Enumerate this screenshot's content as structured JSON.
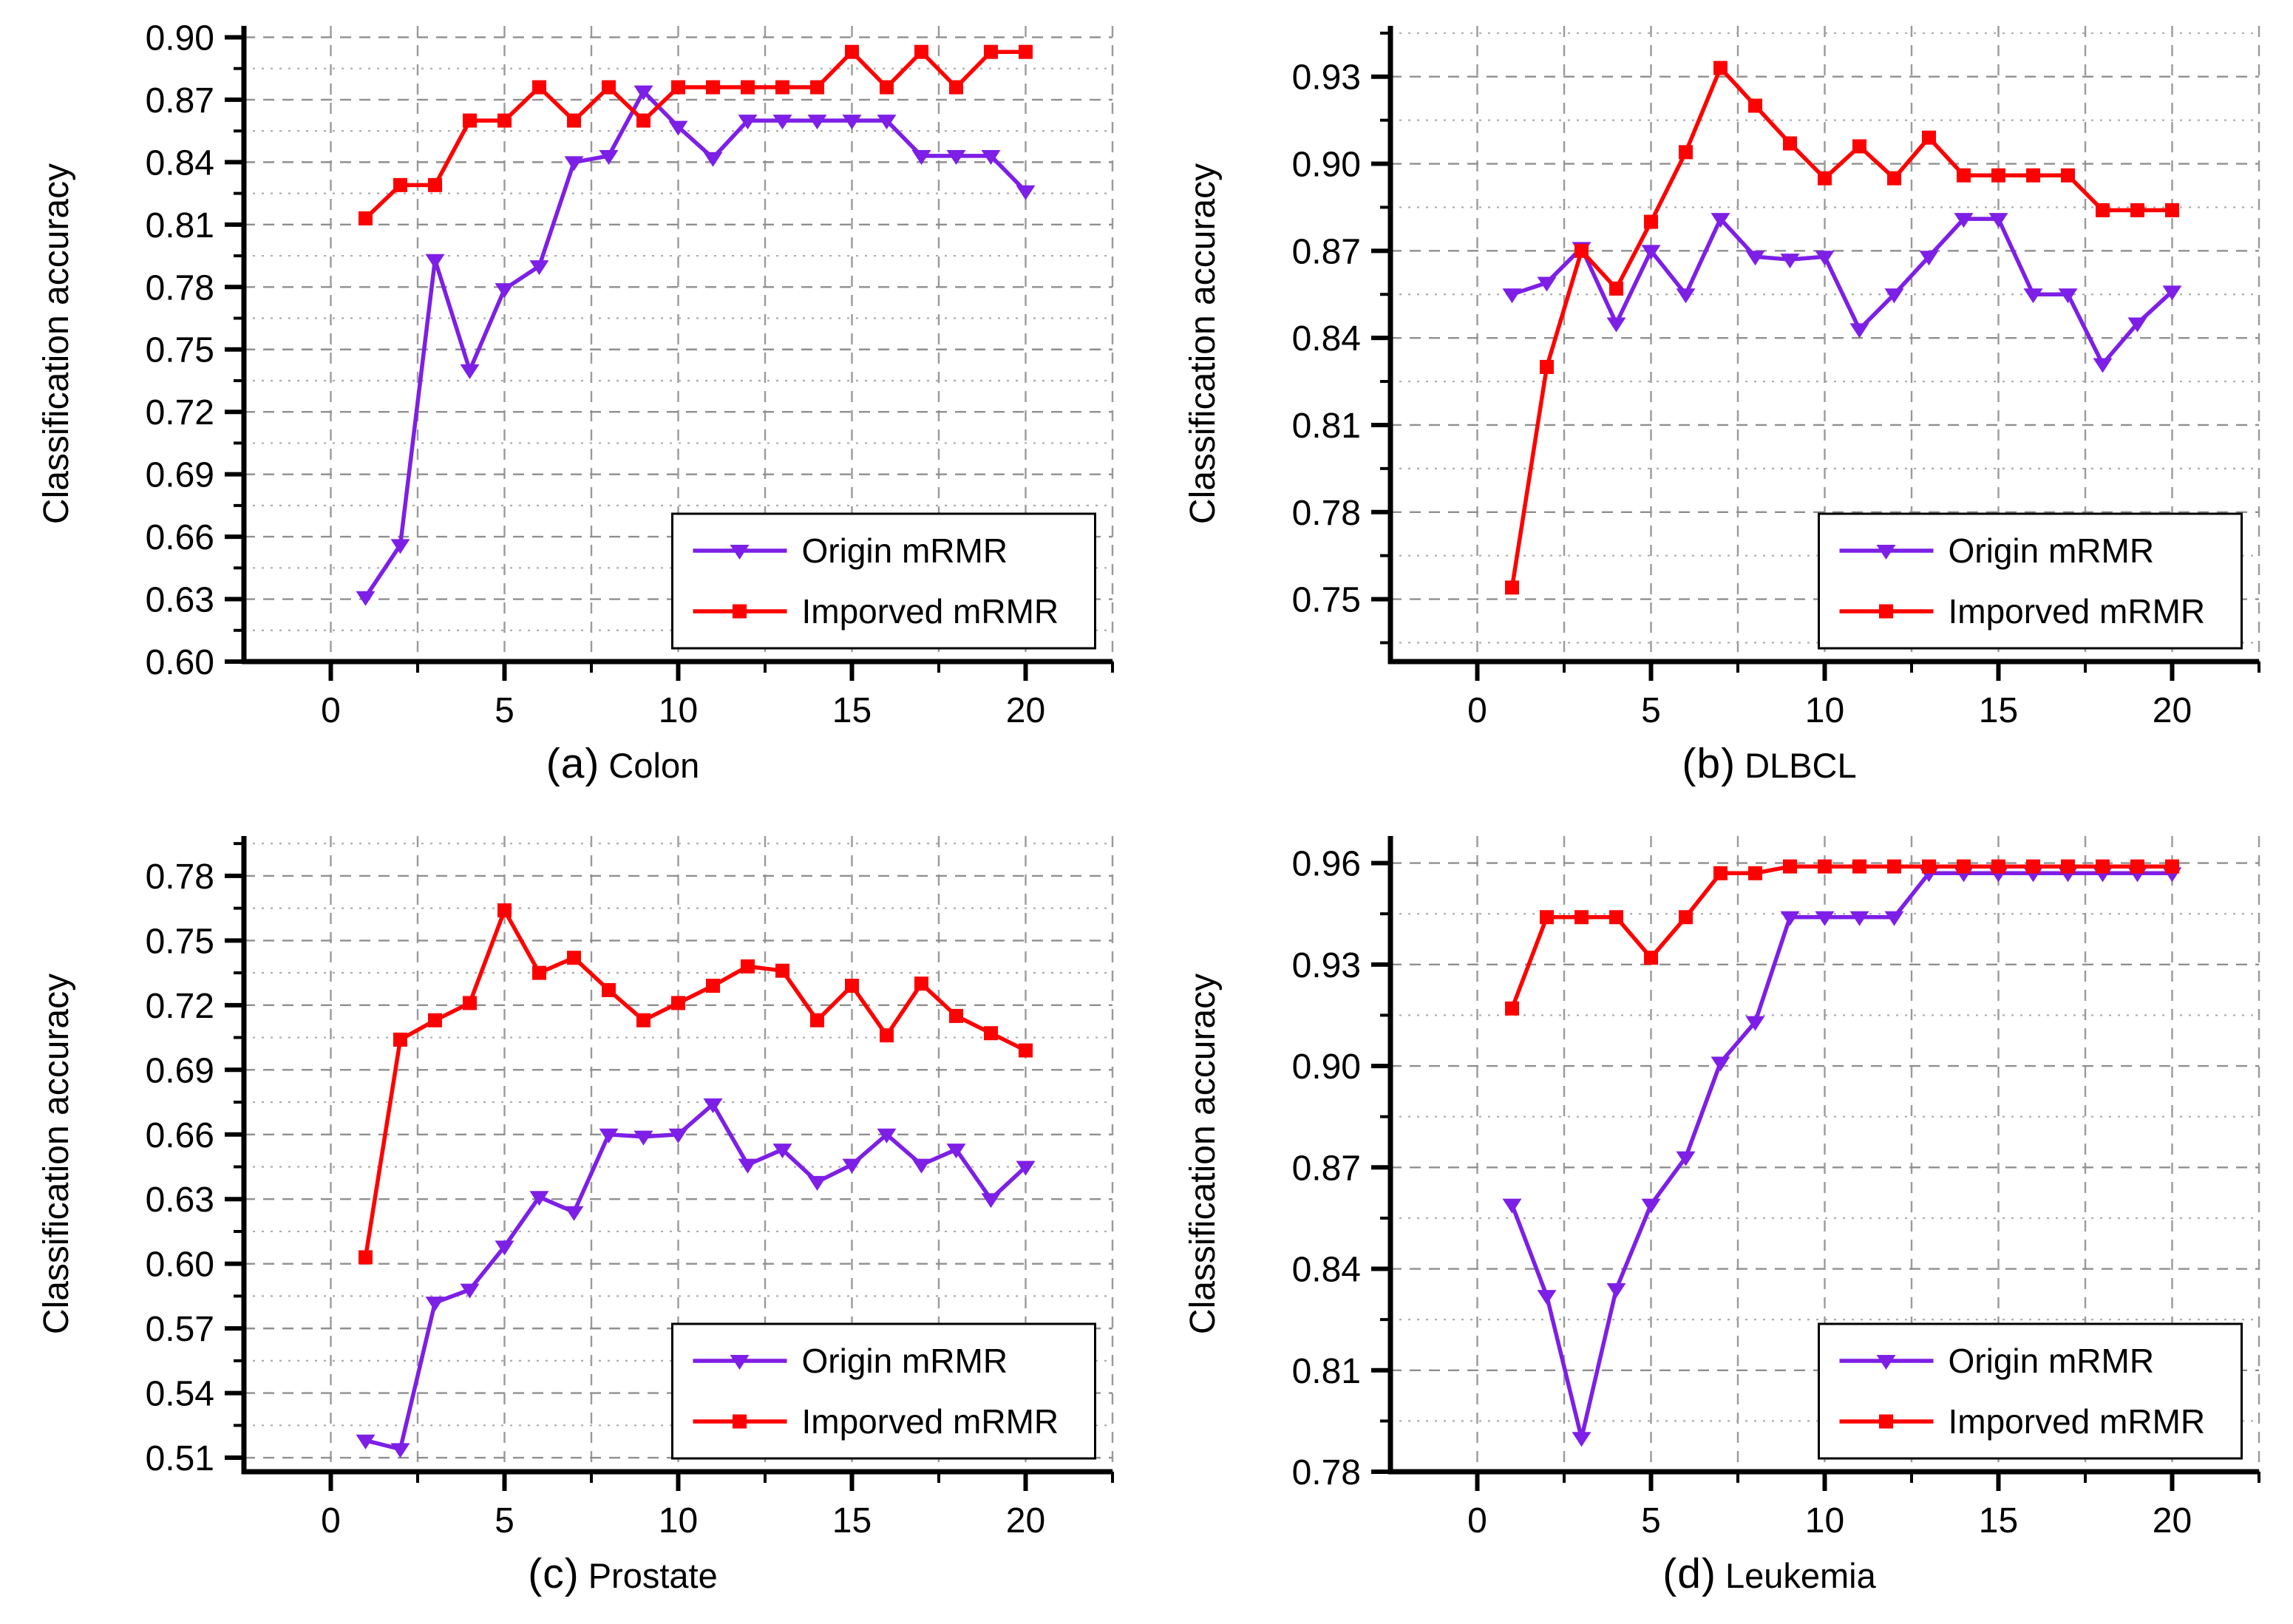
{
  "figure": {
    "ylabel": "Classification accuracy",
    "colors": {
      "origin_series": "#7D1FE6",
      "improved_series": "#FF0000",
      "grid_major": "#8F8F8F",
      "grid_minor": "#ACACAC",
      "grid_vertical": "#9A9A9A",
      "axis": "#000000",
      "background": "#FFFFFF",
      "legend_border": "#000000"
    },
    "legend": {
      "entries": [
        "Origin mRMR",
        "Imporved mRMR"
      ],
      "position": "lower right"
    }
  },
  "chart_data": [
    {
      "type": "line",
      "panel_tag": "(a)",
      "title": "Colon",
      "xlabel": "",
      "ylabel": "Classification accuracy",
      "x": [
        1,
        2,
        3,
        4,
        5,
        6,
        7,
        8,
        9,
        10,
        11,
        12,
        13,
        14,
        15,
        16,
        17,
        18,
        19,
        20
      ],
      "series": [
        {
          "name": "Origin mRMR",
          "marker": "triangle-down",
          "color": "#7D1FE6",
          "values": [
            0.631,
            0.656,
            0.793,
            0.74,
            0.779,
            0.79,
            0.84,
            0.843,
            0.874,
            0.857,
            0.842,
            0.86,
            0.86,
            0.86,
            0.86,
            0.86,
            0.843,
            0.843,
            0.843,
            0.826
          ]
        },
        {
          "name": "Imporved mRMR",
          "marker": "square",
          "color": "#FF0000",
          "values": [
            0.813,
            0.829,
            0.829,
            0.86,
            0.86,
            0.876,
            0.86,
            0.876,
            0.86,
            0.876,
            0.876,
            0.876,
            0.876,
            0.876,
            0.893,
            0.876,
            0.893,
            0.876,
            0.893,
            0.893
          ]
        }
      ],
      "xlim": [
        -2.5,
        22.5
      ],
      "ylim": [
        0.6,
        0.9055
      ],
      "xticks": [
        0,
        5,
        10,
        15,
        20
      ],
      "yticks": [
        0.6,
        0.63,
        0.66,
        0.69,
        0.72,
        0.75,
        0.78,
        0.81,
        0.84,
        0.87,
        0.9
      ],
      "x_minor_step": 2.5,
      "y_minor_step": 0.015,
      "grid": true,
      "legend_position": "lower right"
    },
    {
      "type": "line",
      "panel_tag": "(b)",
      "title": "DLBCL",
      "xlabel": "",
      "ylabel": "Classification accuracy",
      "x": [
        1,
        2,
        3,
        4,
        5,
        6,
        7,
        8,
        9,
        10,
        11,
        12,
        13,
        14,
        15,
        16,
        17,
        18,
        19,
        20
      ],
      "series": [
        {
          "name": "Origin mRMR",
          "marker": "triangle-down",
          "color": "#7D1FE6",
          "values": [
            0.855,
            0.859,
            0.871,
            0.845,
            0.87,
            0.855,
            0.881,
            0.868,
            0.867,
            0.868,
            0.843,
            0.855,
            0.868,
            0.881,
            0.881,
            0.855,
            0.855,
            0.831,
            0.845,
            0.856
          ]
        },
        {
          "name": "Imporved mRMR",
          "marker": "square",
          "color": "#FF0000",
          "values": [
            0.754,
            0.83,
            0.87,
            0.857,
            0.88,
            0.904,
            0.933,
            0.92,
            0.907,
            0.895,
            0.906,
            0.895,
            0.909,
            0.896,
            0.896,
            0.896,
            0.896,
            0.884,
            0.884,
            0.884
          ]
        }
      ],
      "xlim": [
        -2.5,
        22.5
      ],
      "ylim": [
        0.7285,
        0.9475
      ],
      "xticks": [
        0,
        5,
        10,
        15,
        20
      ],
      "yticks": [
        0.75,
        0.78,
        0.81,
        0.84,
        0.87,
        0.9,
        0.93
      ],
      "x_minor_step": 2.5,
      "y_minor_step": 0.015,
      "grid": true,
      "legend_position": "lower right"
    },
    {
      "type": "line",
      "panel_tag": "(c)",
      "title": "Prostate",
      "xlabel": "",
      "ylabel": "Classification accuracy",
      "x": [
        1,
        2,
        3,
        4,
        5,
        6,
        7,
        8,
        9,
        10,
        11,
        12,
        13,
        14,
        15,
        16,
        17,
        18,
        19,
        20
      ],
      "series": [
        {
          "name": "Origin mRMR",
          "marker": "triangle-down",
          "color": "#7D1FE6",
          "values": [
            0.518,
            0.514,
            0.582,
            0.588,
            0.608,
            0.631,
            0.624,
            0.66,
            0.659,
            0.66,
            0.674,
            0.646,
            0.653,
            0.638,
            0.646,
            0.66,
            0.646,
            0.653,
            0.63,
            0.645
          ]
        },
        {
          "name": "Imporved mRMR",
          "marker": "square",
          "color": "#FF0000",
          "values": [
            0.603,
            0.704,
            0.713,
            0.721,
            0.764,
            0.735,
            0.742,
            0.727,
            0.713,
            0.721,
            0.729,
            0.738,
            0.736,
            0.713,
            0.729,
            0.706,
            0.73,
            0.715,
            0.707,
            0.699
          ]
        }
      ],
      "xlim": [
        -2.5,
        22.5
      ],
      "ylim": [
        0.5035,
        0.7985
      ],
      "xticks": [
        0,
        5,
        10,
        15,
        20
      ],
      "yticks": [
        0.51,
        0.54,
        0.57,
        0.6,
        0.63,
        0.66,
        0.69,
        0.72,
        0.75,
        0.78
      ],
      "x_minor_step": 2.5,
      "y_minor_step": 0.015,
      "grid": true,
      "legend_position": "lower right"
    },
    {
      "type": "line",
      "panel_tag": "(d)",
      "title": "Leukemia",
      "xlabel": "",
      "ylabel": "Classification accuracy",
      "x": [
        1,
        2,
        3,
        4,
        5,
        6,
        7,
        8,
        9,
        10,
        11,
        12,
        13,
        14,
        15,
        16,
        17,
        18,
        19,
        20
      ],
      "series": [
        {
          "name": "Origin mRMR",
          "marker": "triangle-down",
          "color": "#7D1FE6",
          "values": [
            0.859,
            0.832,
            0.79,
            0.834,
            0.859,
            0.873,
            0.901,
            0.913,
            0.944,
            0.944,
            0.944,
            0.944,
            0.957,
            0.957,
            0.957,
            0.957,
            0.957,
            0.957,
            0.957,
            0.957
          ]
        },
        {
          "name": "Imporved mRMR",
          "marker": "square",
          "color": "#FF0000",
          "values": [
            0.917,
            0.944,
            0.944,
            0.944,
            0.932,
            0.944,
            0.957,
            0.957,
            0.959,
            0.959,
            0.959,
            0.959,
            0.959,
            0.959,
            0.959,
            0.959,
            0.959,
            0.959,
            0.959,
            0.959
          ]
        }
      ],
      "xlim": [
        -2.5,
        22.5
      ],
      "ylim": [
        0.78,
        0.968
      ],
      "xticks": [
        0,
        5,
        10,
        15,
        20
      ],
      "yticks": [
        0.78,
        0.81,
        0.84,
        0.87,
        0.9,
        0.93,
        0.96
      ],
      "x_minor_step": 2.5,
      "y_minor_step": 0.015,
      "grid": true,
      "legend_position": "lower right"
    }
  ]
}
